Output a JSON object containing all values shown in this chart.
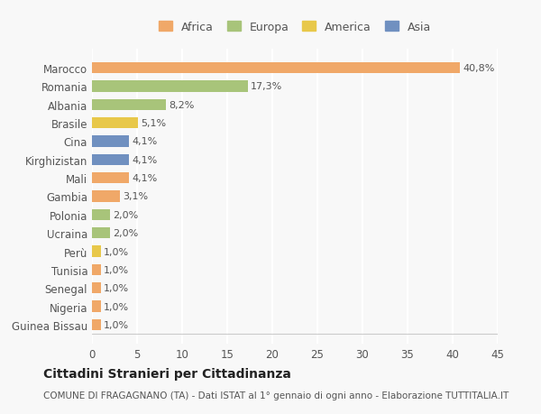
{
  "countries": [
    "Guinea Bissau",
    "Nigeria",
    "Senegal",
    "Tunisia",
    "Perù",
    "Ucraina",
    "Polonia",
    "Gambia",
    "Mali",
    "Kirghizistan",
    "Cina",
    "Brasile",
    "Albania",
    "Romania",
    "Marocco"
  ],
  "values": [
    1.0,
    1.0,
    1.0,
    1.0,
    1.0,
    2.0,
    2.0,
    3.1,
    4.1,
    4.1,
    4.1,
    5.1,
    8.2,
    17.3,
    40.8
  ],
  "labels": [
    "1,0%",
    "1,0%",
    "1,0%",
    "1,0%",
    "1,0%",
    "2,0%",
    "2,0%",
    "3,1%",
    "4,1%",
    "4,1%",
    "4,1%",
    "5,1%",
    "8,2%",
    "17,3%",
    "40,8%"
  ],
  "colors": [
    "#f0a868",
    "#f0a868",
    "#f0a868",
    "#f0a868",
    "#e8c84a",
    "#a8c47a",
    "#a8c47a",
    "#f0a868",
    "#f0a868",
    "#7090c0",
    "#7090c0",
    "#e8c84a",
    "#a8c47a",
    "#a8c47a",
    "#f0a868"
  ],
  "legend": {
    "Africa": "#f0a868",
    "Europa": "#a8c47a",
    "America": "#e8c84a",
    "Asia": "#7090c0"
  },
  "xlim": [
    0,
    45
  ],
  "xticks": [
    0,
    5,
    10,
    15,
    20,
    25,
    30,
    35,
    40,
    45
  ],
  "title": "Cittadini Stranieri per Cittadinanza",
  "subtitle": "COMUNE DI FRAGAGNANO (TA) - Dati ISTAT al 1° gennaio di ogni anno - Elaborazione TUTTITALIA.IT",
  "background_color": "#f8f8f8",
  "bar_background": "#f0f0f0",
  "grid_color": "#ffffff"
}
